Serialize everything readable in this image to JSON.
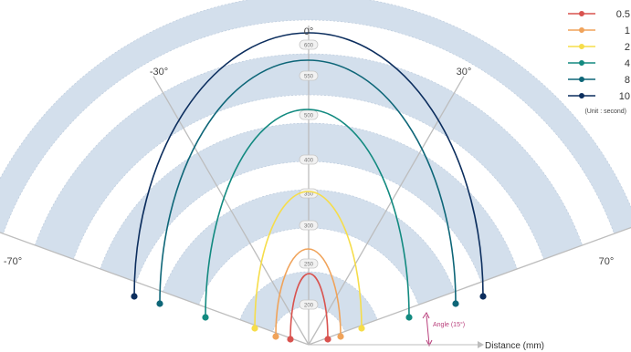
{
  "diagram": {
    "angle_labels": [
      {
        "text": "0°",
        "deg": 0
      },
      {
        "text": "-30°",
        "deg": -30
      },
      {
        "text": "30°",
        "deg": 30
      },
      {
        "text": "-70°",
        "deg": -70
      },
      {
        "text": "70°",
        "deg": 70
      }
    ],
    "rings": [
      "200",
      "250",
      "300",
      "350",
      "400",
      "500",
      "550",
      "600"
    ],
    "angle_annotation": "Angle (15°)",
    "distance_label": "Distance (mm)",
    "colors": {
      "band_fill": "#d3dfec",
      "axis": "#bdbdbd",
      "annotation": "#b83d7a"
    }
  },
  "legend": {
    "unit": "(Unit : second)",
    "items": [
      {
        "label": "0.5",
        "color": "#d9534f"
      },
      {
        "label": "1",
        "color": "#f0a35a"
      },
      {
        "label": "2",
        "color": "#f6dd4a"
      },
      {
        "label": "4",
        "color": "#138a80"
      },
      {
        "label": "8",
        "color": "#0e6678"
      },
      {
        "label": "10",
        "color": "#0c2e5e"
      }
    ]
  }
}
